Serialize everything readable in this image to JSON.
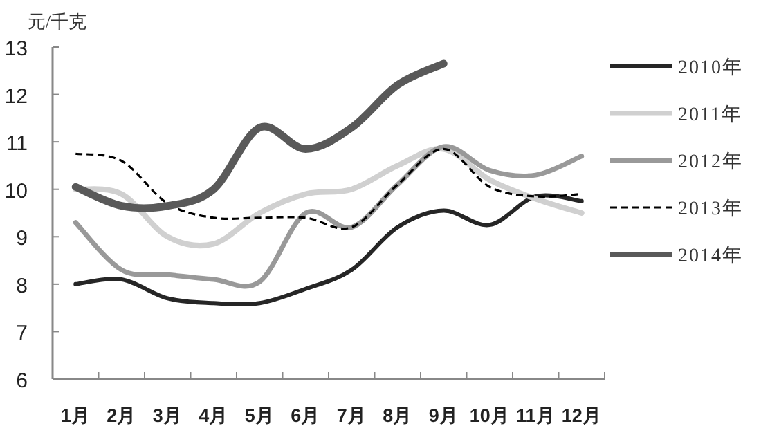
{
  "chart_data": {
    "type": "line",
    "ylabel": "元/千克",
    "categories": [
      "1月",
      "2月",
      "3月",
      "4月",
      "5月",
      "6月",
      "7月",
      "8月",
      "9月",
      "10月",
      "11月",
      "12月"
    ],
    "ylim": [
      6,
      13
    ],
    "yticks": [
      6,
      7,
      8,
      9,
      10,
      11,
      12,
      13
    ],
    "legend": "right",
    "grid": false,
    "marker": "none",
    "series": [
      {
        "name": "2010年",
        "color": "#262626",
        "values": [
          8.0,
          8.1,
          7.7,
          7.6,
          7.6,
          7.9,
          8.3,
          9.2,
          9.55,
          9.25,
          9.85,
          9.75
        ]
      },
      {
        "name": "2011年",
        "color": "#d0d0d0",
        "values": [
          10.0,
          9.9,
          9.0,
          8.85,
          9.5,
          9.9,
          10.0,
          10.5,
          10.85,
          10.2,
          9.8,
          9.5
        ]
      },
      {
        "name": "2012年",
        "color": "#999999",
        "values": [
          9.3,
          8.3,
          8.2,
          8.1,
          8.05,
          9.5,
          9.2,
          10.1,
          10.9,
          10.4,
          10.3,
          10.7
        ]
      },
      {
        "name": "2013年",
        "color": "#000000",
        "line_style": "dashed",
        "values": [
          10.75,
          10.6,
          9.7,
          9.4,
          9.4,
          9.4,
          9.2,
          10.1,
          10.85,
          10.05,
          9.85,
          9.9
        ]
      },
      {
        "name": "2014年",
        "color": "#595959",
        "values": [
          10.05,
          9.65,
          9.65,
          10.0,
          11.3,
          10.85,
          11.3,
          12.2,
          12.65,
          null,
          null,
          null
        ]
      }
    ]
  }
}
